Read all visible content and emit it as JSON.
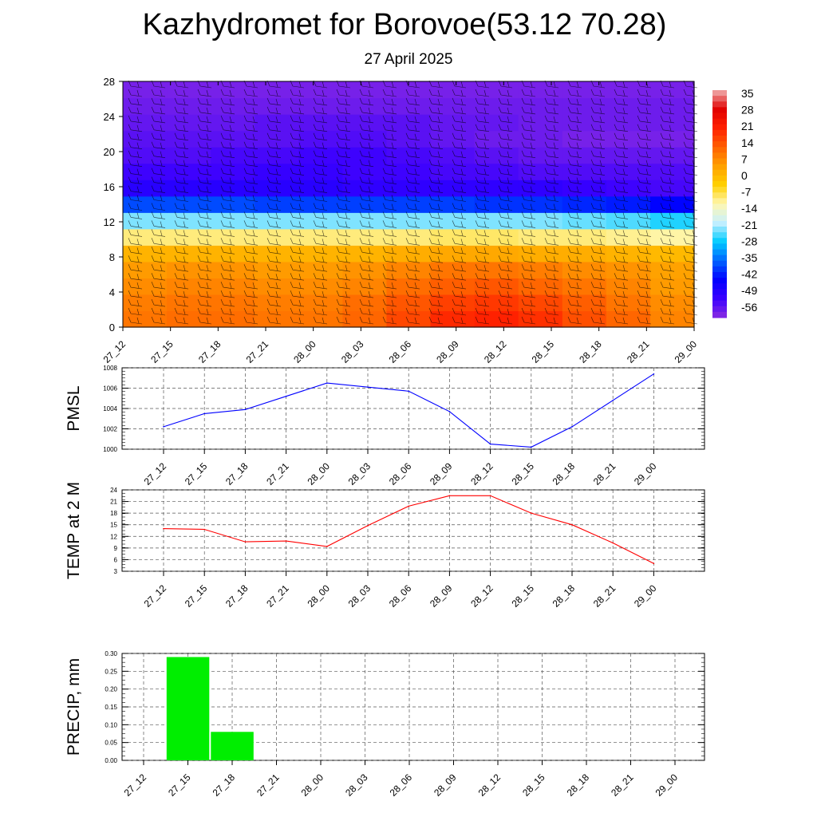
{
  "header": {
    "title": "Kazhydromet for Borovoe(53.12 70.28)",
    "subtitle": "27 April 2025"
  },
  "chart_data": [
    {
      "type": "heatmap",
      "title": "",
      "x_tick_labels": [
        "27_12",
        "27_15",
        "27_18",
        "27_21",
        "28_00",
        "28_03",
        "28_06",
        "28_09",
        "28_12",
        "28_15",
        "28_18",
        "28_21",
        "29_00"
      ],
      "y_tick_labels": [
        "0",
        "4",
        "8",
        "12",
        "16",
        "20",
        "24",
        "28"
      ],
      "ylim": [
        0,
        28
      ],
      "colorbar_labels": [
        "35",
        "28",
        "21",
        "14",
        "7",
        "0",
        "-7",
        "-14",
        "-21",
        "-28",
        "-35",
        "-42",
        "-49",
        "-56"
      ],
      "colorbar_range": [
        -63,
        38
      ],
      "color_stops": [
        "#8a2be2",
        "#3a00ff",
        "#0000ff",
        "#0066ff",
        "#00ccff",
        "#c8f0ff",
        "#fff7b0",
        "#ffd000",
        "#ffa000",
        "#ff6000",
        "#ff2000",
        "#e00000",
        "#f0b0b0"
      ],
      "field": [
        [
          10,
          11,
          11,
          10,
          10,
          12,
          16,
          20,
          21,
          19,
          15,
          12,
          8
        ],
        [
          9,
          10,
          10,
          9,
          9,
          11,
          14,
          17,
          18,
          16,
          13,
          10,
          7
        ],
        [
          7,
          8,
          8,
          7,
          7,
          8,
          11,
          13,
          14,
          12,
          10,
          8,
          5
        ],
        [
          5,
          6,
          6,
          5,
          5,
          6,
          8,
          10,
          10,
          9,
          7,
          6,
          4
        ],
        [
          1,
          1,
          1,
          1,
          1,
          1,
          2,
          3,
          3,
          2,
          2,
          1,
          0
        ],
        [
          -10,
          -10,
          -10,
          -10,
          -10,
          -10,
          -10,
          -9,
          -9,
          -10,
          -10,
          -11,
          -12
        ],
        [
          -24,
          -24,
          -24,
          -24,
          -24,
          -24,
          -24,
          -24,
          -24,
          -24,
          -25,
          -26,
          -28
        ],
        [
          -40,
          -40,
          -40,
          -41,
          -41,
          -41,
          -41,
          -41,
          -42,
          -42,
          -43,
          -44,
          -46
        ],
        [
          -52,
          -52,
          -52,
          -52,
          -52,
          -53,
          -53,
          -53,
          -53,
          -53,
          -54,
          -55,
          -56
        ],
        [
          -55,
          -55,
          -55,
          -54,
          -54,
          -55,
          -55,
          -56,
          -56,
          -57,
          -57,
          -57,
          -57
        ],
        [
          -57,
          -57,
          -56,
          -56,
          -55,
          -55,
          -56,
          -57,
          -58,
          -59,
          -59,
          -59,
          -59
        ],
        [
          -58,
          -58,
          -58,
          -58,
          -57,
          -57,
          -58,
          -59,
          -60,
          -60,
          -61,
          -61,
          -61
        ],
        [
          -59,
          -59,
          -59,
          -58,
          -58,
          -58,
          -58,
          -59,
          -59,
          -60,
          -60,
          -60,
          -60
        ],
        [
          -60,
          -60,
          -60,
          -60,
          -60,
          -60,
          -60,
          -60,
          -60,
          -60,
          -60,
          -60,
          -60
        ],
        [
          -61,
          -61,
          -61,
          -61,
          -61,
          -61,
          -61,
          -61,
          -61,
          -61,
          -61,
          -61,
          -61
        ]
      ],
      "wind_barbs": "present"
    },
    {
      "type": "line",
      "ylabel": "PMSL",
      "x_tick_labels": [
        "27_12",
        "27_15",
        "27_18",
        "27_21",
        "28_00",
        "28_03",
        "28_06",
        "28_09",
        "28_12",
        "28_15",
        "28_18",
        "28_21",
        "29_00"
      ],
      "y_tick_labels": [
        "1000",
        "1002",
        "1004",
        "1006",
        "1008"
      ],
      "ylim": [
        1000,
        1008
      ],
      "series": [
        {
          "values": [
            1002.2,
            1003.5,
            1003.9,
            1005.2,
            1006.5,
            1006.1,
            1005.7,
            1003.7,
            1000.5,
            1000.2,
            1002.2,
            1004.8,
            1007.4
          ],
          "color": "#0000ff"
        }
      ],
      "grid": true
    },
    {
      "type": "line",
      "ylabel": "TEMP at 2 M",
      "x_tick_labels": [
        "27_12",
        "27_15",
        "27_18",
        "27_21",
        "28_00",
        "28_03",
        "28_06",
        "28_09",
        "28_12",
        "28_15",
        "28_18",
        "28_21",
        "29_00"
      ],
      "y_tick_labels": [
        "3",
        "6",
        "9",
        "12",
        "15",
        "18",
        "21",
        "24"
      ],
      "ylim": [
        3,
        24
      ],
      "series": [
        {
          "values": [
            14.0,
            13.8,
            10.6,
            10.8,
            9.4,
            14.8,
            19.8,
            22.5,
            22.5,
            18.0,
            15.0,
            10.3,
            5.0
          ],
          "color": "#ff0000"
        }
      ],
      "grid": true
    },
    {
      "type": "bar",
      "ylabel": "PRECIP, mm",
      "x_tick_labels": [
        "27_12",
        "27_15",
        "27_18",
        "27_21",
        "28_00",
        "28_03",
        "28_06",
        "28_09",
        "28_12",
        "28_15",
        "28_18",
        "28_21",
        "29_00"
      ],
      "y_tick_labels": [
        "0.00",
        "0.05",
        "0.10",
        "0.15",
        "0.20",
        "0.25",
        "0.30"
      ],
      "ylim": [
        0,
        0.3
      ],
      "values": [
        0.0,
        0.29,
        0.08,
        0.0,
        0.0,
        0.0,
        0.0,
        0.0,
        0.0,
        0.0,
        0.0,
        0.0,
        0.0
      ],
      "bar_color": "#00ee00",
      "grid": true
    }
  ]
}
